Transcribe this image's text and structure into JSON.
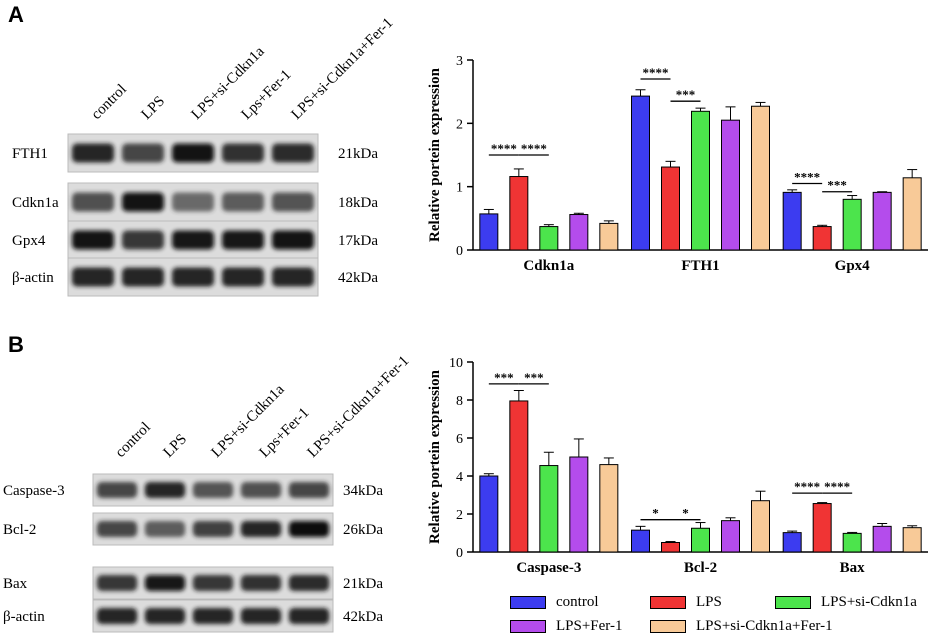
{
  "panels": {
    "a": "A",
    "b": "B"
  },
  "colors": {
    "control": "#3c3cf0",
    "LPS": "#f03434",
    "si": "#4ce44c",
    "fer": "#b44cec",
    "combo": "#f8ca98"
  },
  "blot_a": {
    "lanes": [
      "control",
      "LPS",
      "LPS+si-Cdkn1a",
      "Lps+Fer-1",
      "LPS+si-Cdkn1a+Fer-1"
    ],
    "rows": [
      {
        "label": "FTH1",
        "kda": "21kDa",
        "bands": [
          0.85,
          0.6,
          0.95,
          0.75,
          0.8
        ]
      },
      {
        "label": "Cdkn1a",
        "kda": "18kDa",
        "bands": [
          0.55,
          0.95,
          0.35,
          0.45,
          0.5
        ]
      },
      {
        "label": "Gpx4",
        "kda": "17kDa",
        "bands": [
          0.95,
          0.7,
          0.9,
          0.9,
          0.95
        ]
      },
      {
        "label": "β-actin",
        "kda": "42kDa",
        "bands": [
          0.85,
          0.85,
          0.85,
          0.85,
          0.85
        ]
      }
    ]
  },
  "blot_b": {
    "lanes": [
      "control",
      "LPS",
      "LPS+si-Cdkn1a",
      "Lps+Fer-1",
      "LPS+si-Cdkn1a+Fer-1"
    ],
    "rows": [
      {
        "label": "Caspase-3",
        "kda": "34kDa",
        "bands": [
          0.6,
          0.85,
          0.5,
          0.55,
          0.6
        ]
      },
      {
        "label": "Bcl-2",
        "kda": "26kDa",
        "bands": [
          0.6,
          0.45,
          0.65,
          0.85,
          1.0
        ]
      },
      {
        "label": "Bax",
        "kda": "21kDa",
        "bands": [
          0.7,
          0.9,
          0.7,
          0.75,
          0.8
        ]
      },
      {
        "label": "β-actin",
        "kda": "42kDa",
        "bands": [
          0.85,
          0.85,
          0.85,
          0.85,
          0.85
        ]
      }
    ]
  },
  "chart_data": [
    {
      "type": "bar",
      "title": "",
      "ylabel": "Relative portein expression",
      "ylim": [
        0,
        3
      ],
      "yticks": [
        0,
        1,
        2,
        3
      ],
      "categories": [
        "Cdkn1a",
        "FTH1",
        "Gpx4"
      ],
      "series": [
        {
          "name": "control",
          "values": [
            0.57,
            2.43,
            0.91
          ],
          "errors": [
            0.07,
            0.1,
            0.04
          ]
        },
        {
          "name": "LPS",
          "values": [
            1.16,
            1.31,
            0.37
          ],
          "errors": [
            0.12,
            0.09,
            0.02
          ]
        },
        {
          "name": "LPS+si-Cdkn1a",
          "values": [
            0.37,
            2.19,
            0.8
          ],
          "errors": [
            0.03,
            0.05,
            0.06
          ]
        },
        {
          "name": "LPS+Fer-1",
          "values": [
            0.56,
            2.05,
            0.91
          ],
          "errors": [
            0.02,
            0.21,
            0.01
          ]
        },
        {
          "name": "LPS+si-Cdkn1a+Fer-1",
          "values": [
            0.42,
            2.27,
            1.14
          ],
          "errors": [
            0.04,
            0.06,
            0.13
          ]
        }
      ],
      "annotations": [
        {
          "category": 0,
          "from": 0,
          "to": 1,
          "label": "****",
          "y": 1.5
        },
        {
          "category": 0,
          "from": 1,
          "to": 2,
          "label": "****",
          "y": 1.5
        },
        {
          "category": 1,
          "from": 0,
          "to": 1,
          "label": "****",
          "y": 2.7
        },
        {
          "category": 1,
          "from": 1,
          "to": 2,
          "label": "***",
          "y": 2.35
        },
        {
          "category": 2,
          "from": 0,
          "to": 1,
          "label": "****",
          "y": 1.05
        },
        {
          "category": 2,
          "from": 1,
          "to": 2,
          "label": "***",
          "y": 0.92
        }
      ]
    },
    {
      "type": "bar",
      "title": "",
      "ylabel": "Relative portein expression",
      "ylim": [
        0,
        10
      ],
      "yticks": [
        0,
        2,
        4,
        6,
        8,
        10
      ],
      "categories": [
        "Caspase-3",
        "Bcl-2",
        "Bax"
      ],
      "series": [
        {
          "name": "control",
          "values": [
            4.0,
            1.15,
            1.02
          ],
          "errors": [
            0.12,
            0.2,
            0.08
          ]
        },
        {
          "name": "LPS",
          "values": [
            7.95,
            0.5,
            2.55
          ],
          "errors": [
            0.55,
            0.05,
            0.05
          ]
        },
        {
          "name": "LPS+si-Cdkn1a",
          "values": [
            4.55,
            1.25,
            0.98
          ],
          "errors": [
            0.7,
            0.3,
            0.05
          ]
        },
        {
          "name": "LPS+Fer-1",
          "values": [
            5.0,
            1.65,
            1.35
          ],
          "errors": [
            0.95,
            0.15,
            0.15
          ]
        },
        {
          "name": "LPS+si-Cdkn1a+Fer-1",
          "values": [
            4.6,
            2.7,
            1.28
          ],
          "errors": [
            0.35,
            0.5,
            0.1
          ]
        }
      ],
      "annotations": [
        {
          "category": 0,
          "from": 0,
          "to": 1,
          "label": "***",
          "y": 8.85
        },
        {
          "category": 0,
          "from": 1,
          "to": 2,
          "label": "***",
          "y": 8.85
        },
        {
          "category": 1,
          "from": 0,
          "to": 1,
          "label": "*",
          "y": 1.7
        },
        {
          "category": 1,
          "from": 1,
          "to": 2,
          "label": "*",
          "y": 1.7
        },
        {
          "category": 2,
          "from": 0,
          "to": 1,
          "label": "****",
          "y": 3.1
        },
        {
          "category": 2,
          "from": 1,
          "to": 2,
          "label": "****",
          "y": 3.1
        }
      ]
    }
  ],
  "legend": [
    {
      "name": "control",
      "color": "#3c3cf0"
    },
    {
      "name": "LPS",
      "color": "#f03434"
    },
    {
      "name": "LPS+si-Cdkn1a",
      "color": "#4ce44c"
    },
    {
      "name": "LPS+Fer-1",
      "color": "#b44cec"
    },
    {
      "name": "LPS+si-Cdkn1a+Fer-1",
      "color": "#f8ca98"
    }
  ]
}
